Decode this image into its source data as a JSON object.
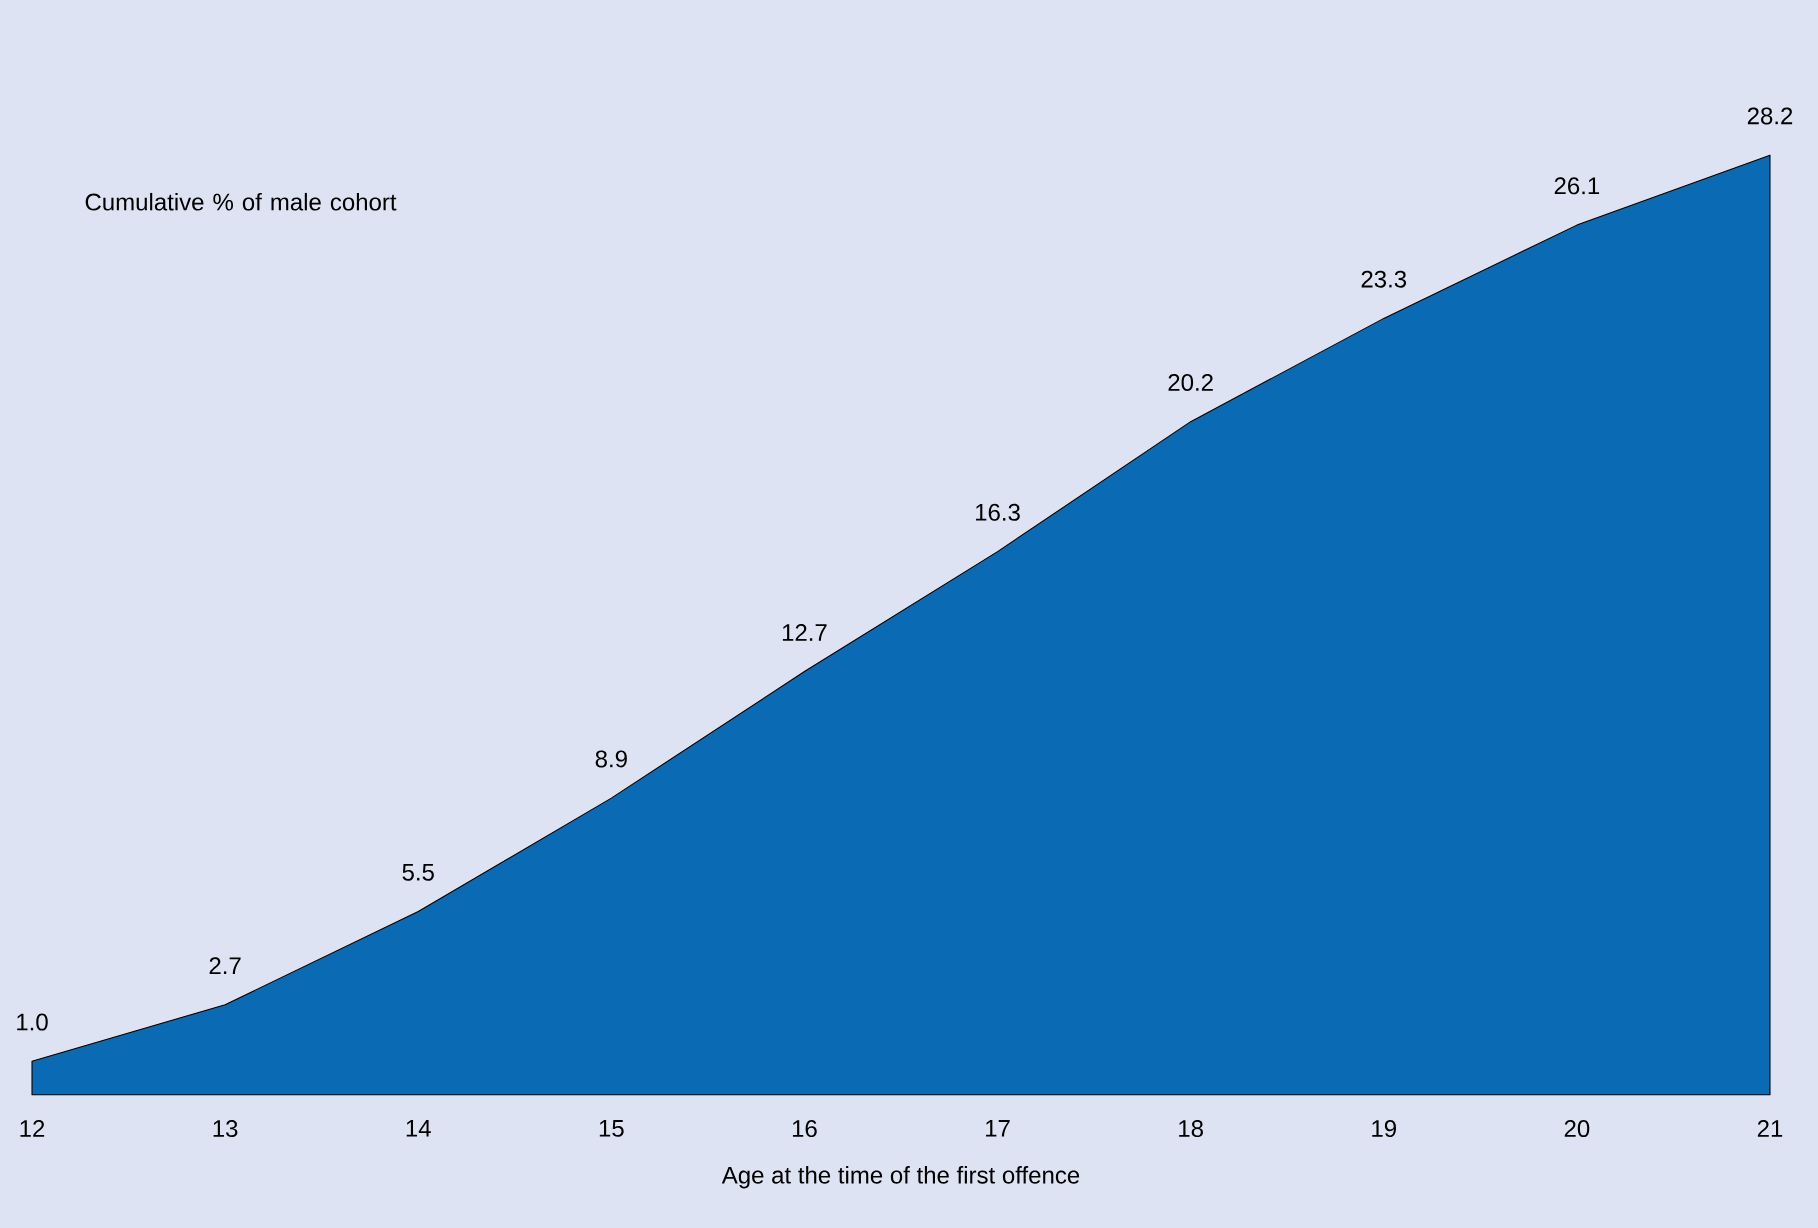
{
  "chart_data": {
    "type": "area",
    "xlabel": "Age at the time of the first offence",
    "annotations": [
      "Cumulative % of male cohort"
    ],
    "x": [
      12,
      13,
      14,
      15,
      16,
      17,
      18,
      19,
      20,
      21
    ],
    "values": [
      1.0,
      2.7,
      5.5,
      8.9,
      12.7,
      16.3,
      20.2,
      23.3,
      26.1,
      28.2
    ],
    "color": "#0a6ab4",
    "xlim": [
      12,
      21
    ],
    "xticks": [
      12,
      13,
      14,
      15,
      16,
      17,
      18,
      19,
      20,
      21
    ],
    "tick_labels": "x",
    "value_labels": [
      "1.0",
      "2.7",
      "5.5",
      "8.9",
      "12.7",
      "16.3",
      "20.2",
      "23.3",
      "26.1",
      "28.2"
    ]
  }
}
